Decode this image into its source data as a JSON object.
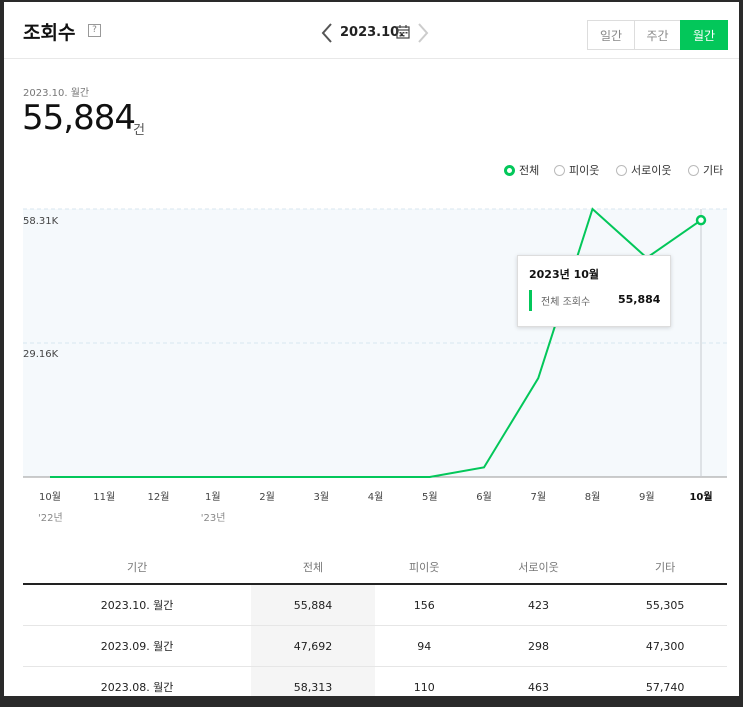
{
  "header": {
    "title": "조회수",
    "help": "?",
    "date": "2023.10.",
    "tabs": [
      "일간",
      "주간",
      "월간"
    ],
    "active_tab": "월간"
  },
  "summary": {
    "period": "2023.10. 월간",
    "value": "55,884",
    "unit": "건"
  },
  "legend": [
    {
      "label": "전체",
      "selected": true
    },
    {
      "label": "피이웃",
      "selected": false
    },
    {
      "label": "서로이웃",
      "selected": false
    },
    {
      "label": "기타",
      "selected": false
    }
  ],
  "chart_data": {
    "type": "line",
    "categories": [
      "10월",
      "11월",
      "12월",
      "1월",
      "2월",
      "3월",
      "4월",
      "5월",
      "6월",
      "7월",
      "8월",
      "9월",
      "10월"
    ],
    "year_labels": [
      {
        "index": 0,
        "label": "'22년"
      },
      {
        "index": 3,
        "label": "'23년"
      }
    ],
    "series": [
      {
        "name": "전체",
        "color": "#03c75a",
        "values": [
          0,
          0,
          0,
          0,
          0,
          0,
          0,
          0,
          2100,
          21500,
          58313,
          47692,
          55884
        ]
      }
    ],
    "y_ticks": [
      "58.31K",
      "29.16K"
    ],
    "y_tick_values": [
      58310,
      29160
    ],
    "ylim": [
      0,
      58313
    ],
    "grid": true,
    "highlight_index": 12
  },
  "tooltip": {
    "title": "2023년 10월",
    "label": "전체 조회수",
    "value": "55,884"
  },
  "table": {
    "headers": [
      "기간",
      "전체",
      "피이웃",
      "서로이웃",
      "기타"
    ],
    "rows": [
      [
        "2023.10. 월간",
        "55,884",
        "156",
        "423",
        "55,305"
      ],
      [
        "2023.09. 월간",
        "47,692",
        "94",
        "298",
        "47,300"
      ],
      [
        "2023.08. 월간",
        "58,313",
        "110",
        "463",
        "57,740"
      ]
    ]
  },
  "colors": {
    "accent": "#03c75a",
    "grid": "#d8e6ef",
    "chart_bg": "#f5f9fc"
  }
}
